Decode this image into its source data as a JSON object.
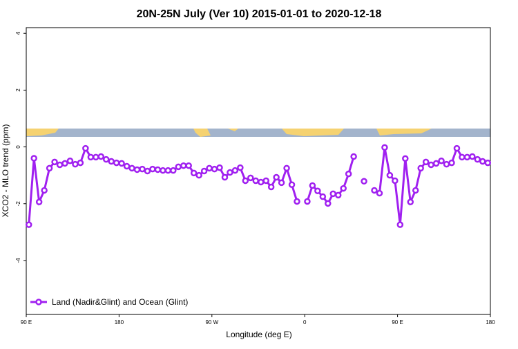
{
  "chart_data": {
    "type": "line",
    "title": "20N-25N July (Ver 10)   2015-01-01 to 2020-12-18",
    "x_label": "Longitude (deg E)",
    "y_label": "XCO2 - MLO trend (ppm)",
    "xlim": [
      90,
      540
    ],
    "ylim": [
      -5.9,
      4.2
    ],
    "xticks": [
      {
        "value": 90,
        "label": "90 E"
      },
      180,
      {
        "value": 270,
        "label": "90 W"
      },
      {
        "value": 360,
        "label": "0"
      },
      {
        "value": 450,
        "label": "90 E"
      },
      {
        "value": 540,
        "label": "180"
      }
    ],
    "yticks": [
      4,
      2,
      0,
      -2,
      -4
    ],
    "legend": "bottom-left",
    "x": [
      92.5,
      97.5,
      102.5,
      107.5,
      112.5,
      117.5,
      122.5,
      127.5,
      132.5,
      137.5,
      142.5,
      147.5,
      152.5,
      157.5,
      162.5,
      167.5,
      172.5,
      177.5,
      182.5,
      187.5,
      192.5,
      197.5,
      202.5,
      207.5,
      212.5,
      217.5,
      222.5,
      227.5,
      232.5,
      237.5,
      242.5,
      247.5,
      252.5,
      257.5,
      262.5,
      267.5,
      272.5,
      277.5,
      282.5,
      287.5,
      292.5,
      297.5,
      302.5,
      307.5,
      312.5,
      317.5,
      322.5,
      327.5,
      332.5,
      337.5,
      342.5,
      347.5,
      352.5,
      357.5,
      362.5,
      367.5,
      372.5,
      377.5,
      382.5,
      387.5,
      392.5,
      397.5,
      402.5,
      407.5,
      412.5,
      417.5,
      422.5,
      427.5,
      432.5,
      437.5,
      442.5,
      447.5,
      452.5,
      457.5,
      462.5,
      467.5,
      472.5,
      477.5,
      482.5,
      487.5,
      492.5,
      497.5,
      502.5,
      507.5,
      512.5,
      517.5,
      522.5,
      527.5,
      532.5,
      537.5
    ],
    "series": [
      {
        "name": "Land (Nadir&Glint) and Ocean (Glint)",
        "color": "#a020f0",
        "values": [
          -2.74,
          -0.4,
          -1.94,
          -1.53,
          -0.75,
          -0.53,
          -0.63,
          -0.58,
          -0.49,
          -0.61,
          -0.56,
          -0.05,
          -0.36,
          -0.36,
          -0.34,
          -0.44,
          -0.51,
          -0.56,
          -0.58,
          -0.68,
          -0.75,
          -0.8,
          -0.78,
          -0.85,
          -0.78,
          -0.8,
          -0.83,
          -0.83,
          -0.83,
          -0.7,
          -0.66,
          -0.66,
          -0.92,
          -1.0,
          -0.85,
          -0.75,
          -0.78,
          -0.73,
          -1.07,
          -0.9,
          -0.83,
          -0.73,
          -1.19,
          -1.09,
          -1.19,
          -1.24,
          -1.19,
          -1.41,
          -1.07,
          -1.26,
          -0.75,
          -1.33,
          -1.92,
          null,
          -1.92,
          -1.36,
          -1.55,
          -1.75,
          -1.99,
          -1.65,
          -1.7,
          -1.46,
          -0.95,
          -0.34,
          null,
          -1.21,
          null,
          -1.53,
          -1.63,
          -0.02,
          -1.0,
          -1.19,
          -2.74,
          -0.41,
          -1.94,
          -1.53,
          -0.75,
          -0.53,
          -0.63,
          -0.58,
          -0.49,
          -0.61,
          -0.56,
          -0.05,
          -0.36,
          -0.36,
          -0.34,
          -0.44,
          -0.51,
          -0.56
        ]
      }
    ]
  }
}
